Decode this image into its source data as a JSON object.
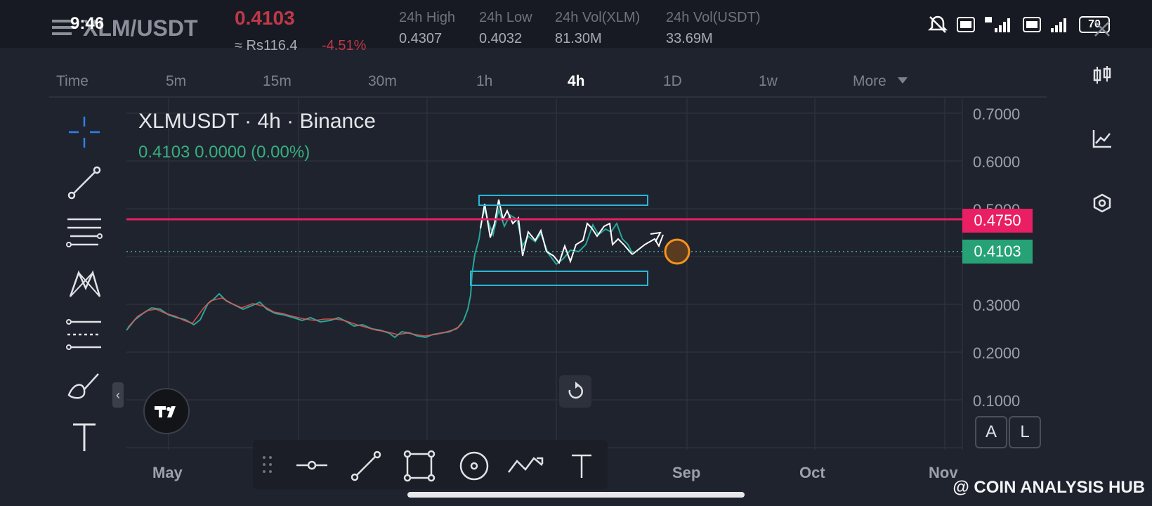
{
  "status_bar": {
    "time": "9:46",
    "battery": "70"
  },
  "header": {
    "pair": "XLM/USDT",
    "last_price": "0.4103",
    "local_price": "≈ Rs116.4",
    "change_pct": "-4.51%",
    "stats": [
      {
        "label": "24h High",
        "value": "0.4307"
      },
      {
        "label": "24h Low",
        "value": "0.4032"
      },
      {
        "label": "24h Vol(XLM)",
        "value": "81.30M"
      },
      {
        "label": "24h Vol(USDT)",
        "value": "33.69M"
      }
    ]
  },
  "timeframes": [
    "Time",
    "5m",
    "15m",
    "30m",
    "1h",
    "4h",
    "1D",
    "1w",
    "More"
  ],
  "active_timeframe": "4h",
  "chart_header": {
    "symbol_line": "XLMUSDT · 4h · Binance",
    "ohlc_line": "0.4103  0.0000 (0.00%)"
  },
  "price_badges": {
    "resistance": "0.4750",
    "current": "0.4103"
  },
  "y_axis_labels": [
    "0.7000",
    "0.6000",
    "0.5000",
    "0.3000",
    "0.2000",
    "0.1000"
  ],
  "x_axis_labels": [
    "May",
    "Sep",
    "Oct",
    "Nov"
  ],
  "scale_buttons": {
    "auto": "A",
    "log": "L"
  },
  "watermark": "@ COIN ANALYSIS HUB",
  "colors": {
    "background": "#1f232e",
    "up": "#26a69a",
    "down": "#ef5350",
    "resistance_line": "#e91e63",
    "current_badge": "#26a276",
    "box": "#29b6d6",
    "target_circle": "#f7931a"
  },
  "icons": {
    "left_toolbar": [
      "crosshair-icon",
      "trend-line-icon",
      "fib-icon",
      "pattern-icon",
      "projection-icon",
      "brush-icon",
      "text-icon"
    ],
    "right_toolbar": [
      "candles-icon",
      "indicators-icon",
      "settings-hex-icon"
    ],
    "bottom_toolbar": [
      "drag-handle-icon",
      "horizontal-line-icon",
      "line-icon",
      "rectangle-icon",
      "circle-icon",
      "path-icon",
      "text-icon"
    ]
  }
}
